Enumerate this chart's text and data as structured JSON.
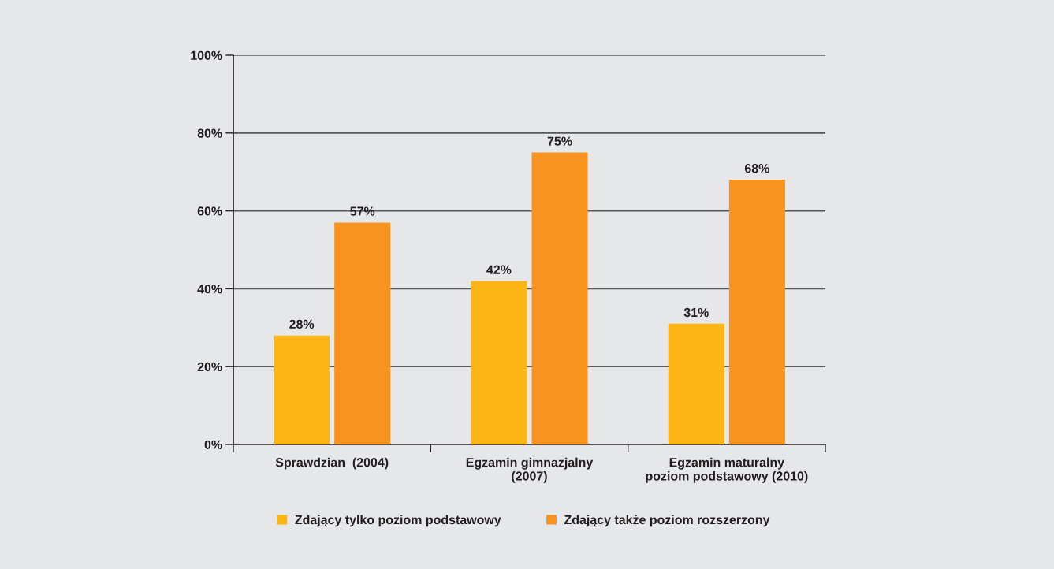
{
  "chart_data": {
    "type": "bar",
    "categories": [
      "Sprawdzian  (2004)",
      "Egzamin gimnazjalny\n(2007)",
      "Egzamin maturalny\npoziom podstawowy (2010)"
    ],
    "series": [
      {
        "name": "Zdający tylko poziom podstawowy",
        "color": "#fdb515",
        "values": [
          28,
          42,
          31
        ],
        "value_labels": [
          "28%",
          "42%",
          "31%"
        ]
      },
      {
        "name": "Zdający także poziom rozszerzony",
        "color": "#f7931e",
        "values": [
          57,
          75,
          68
        ],
        "value_labels": [
          "57%",
          "75%",
          "68%"
        ]
      }
    ],
    "ylim": [
      0,
      100
    ],
    "yticks": [
      {
        "value": 0,
        "label": "0%"
      },
      {
        "value": 20,
        "label": "20%"
      },
      {
        "value": 40,
        "label": "40%"
      },
      {
        "value": 60,
        "label": "60%"
      },
      {
        "value": 80,
        "label": "80%"
      },
      {
        "value": 100,
        "label": "100%"
      }
    ],
    "grid": "y",
    "legend": "bottom"
  }
}
